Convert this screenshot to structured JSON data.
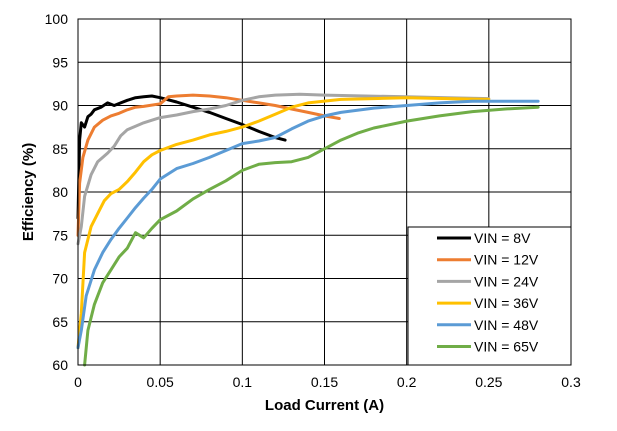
{
  "chart_data": {
    "type": "line",
    "xlabel": "Load Current (A)",
    "ylabel": "Efficiency (%)",
    "xlim": [
      0,
      0.3
    ],
    "ylim": [
      60,
      100
    ],
    "x_ticks": [
      "0",
      "0.05",
      "0.1",
      "0.15",
      "0.2",
      "0.25",
      "0.3"
    ],
    "y_ticks": [
      "60",
      "65",
      "70",
      "75",
      "80",
      "85",
      "90",
      "95",
      "100"
    ],
    "grid": true,
    "legend_position": "bottom-right",
    "series": [
      {
        "name": "VIN = 8V",
        "color": "#000000",
        "points": [
          [
            0,
            77
          ],
          [
            0.001,
            86
          ],
          [
            0.002,
            88
          ],
          [
            0.004,
            87.5
          ],
          [
            0.006,
            88.7
          ],
          [
            0.008,
            89
          ],
          [
            0.01,
            89.5
          ],
          [
            0.014,
            89.8
          ],
          [
            0.018,
            90.3
          ],
          [
            0.022,
            90
          ],
          [
            0.026,
            90.3
          ],
          [
            0.03,
            90.6
          ],
          [
            0.035,
            90.9
          ],
          [
            0.04,
            91
          ],
          [
            0.045,
            91.1
          ],
          [
            0.05,
            90.9
          ],
          [
            0.06,
            90.4
          ],
          [
            0.07,
            89.8
          ],
          [
            0.08,
            89.2
          ],
          [
            0.09,
            88.5
          ],
          [
            0.1,
            87.8
          ],
          [
            0.11,
            87
          ],
          [
            0.12,
            86.3
          ],
          [
            0.126,
            86
          ]
        ]
      },
      {
        "name": "VIN = 12V",
        "color": "#ed7d31",
        "points": [
          [
            0,
            75
          ],
          [
            0.001,
            81
          ],
          [
            0.003,
            84
          ],
          [
            0.006,
            86
          ],
          [
            0.01,
            87.5
          ],
          [
            0.015,
            88.3
          ],
          [
            0.02,
            88.8
          ],
          [
            0.025,
            89.1
          ],
          [
            0.03,
            89.5
          ],
          [
            0.035,
            89.8
          ],
          [
            0.04,
            89.9
          ],
          [
            0.05,
            90.2
          ],
          [
            0.055,
            91
          ],
          [
            0.06,
            91.1
          ],
          [
            0.07,
            91.2
          ],
          [
            0.08,
            91.1
          ],
          [
            0.09,
            90.9
          ],
          [
            0.1,
            90.6
          ],
          [
            0.11,
            90.3
          ],
          [
            0.12,
            90
          ],
          [
            0.13,
            89.6
          ],
          [
            0.14,
            89.2
          ],
          [
            0.15,
            88.8
          ],
          [
            0.159,
            88.5
          ]
        ]
      },
      {
        "name": "VIN = 24V",
        "color": "#a5a5a5",
        "points": [
          [
            0,
            74
          ],
          [
            0.002,
            76
          ],
          [
            0.004,
            79.5
          ],
          [
            0.008,
            82
          ],
          [
            0.012,
            83.5
          ],
          [
            0.018,
            84.5
          ],
          [
            0.022,
            85.3
          ],
          [
            0.026,
            86.5
          ],
          [
            0.03,
            87.2
          ],
          [
            0.035,
            87.6
          ],
          [
            0.04,
            88
          ],
          [
            0.045,
            88.3
          ],
          [
            0.05,
            88.6
          ],
          [
            0.06,
            88.9
          ],
          [
            0.07,
            89.3
          ],
          [
            0.08,
            89.6
          ],
          [
            0.09,
            90
          ],
          [
            0.1,
            90.6
          ],
          [
            0.11,
            91
          ],
          [
            0.12,
            91.2
          ],
          [
            0.135,
            91.3
          ],
          [
            0.15,
            91.2
          ],
          [
            0.175,
            91.1
          ],
          [
            0.2,
            91
          ],
          [
            0.225,
            90.9
          ],
          [
            0.25,
            90.8
          ]
        ]
      },
      {
        "name": "VIN = 36V",
        "color": "#ffc000",
        "points": [
          [
            0,
            62
          ],
          [
            0.002,
            66
          ],
          [
            0.004,
            73
          ],
          [
            0.008,
            76
          ],
          [
            0.012,
            77.5
          ],
          [
            0.016,
            79
          ],
          [
            0.02,
            79.8
          ],
          [
            0.025,
            80.3
          ],
          [
            0.03,
            81.2
          ],
          [
            0.035,
            82.3
          ],
          [
            0.04,
            83.5
          ],
          [
            0.045,
            84.3
          ],
          [
            0.05,
            84.8
          ],
          [
            0.06,
            85.5
          ],
          [
            0.07,
            86
          ],
          [
            0.08,
            86.6
          ],
          [
            0.09,
            87
          ],
          [
            0.1,
            87.5
          ],
          [
            0.11,
            88.2
          ],
          [
            0.12,
            89
          ],
          [
            0.13,
            89.8
          ],
          [
            0.14,
            90.3
          ],
          [
            0.16,
            90.7
          ],
          [
            0.18,
            90.8
          ],
          [
            0.2,
            90.9
          ],
          [
            0.225,
            90.8
          ],
          [
            0.25,
            90.7
          ]
        ]
      },
      {
        "name": "VIN = 48V",
        "color": "#5b9bd5",
        "points": [
          [
            0,
            62
          ],
          [
            0.002,
            64
          ],
          [
            0.005,
            68
          ],
          [
            0.01,
            71
          ],
          [
            0.015,
            73
          ],
          [
            0.02,
            74.5
          ],
          [
            0.025,
            75.8
          ],
          [
            0.03,
            77
          ],
          [
            0.035,
            78.2
          ],
          [
            0.04,
            79.3
          ],
          [
            0.045,
            80.3
          ],
          [
            0.05,
            81.5
          ],
          [
            0.06,
            82.7
          ],
          [
            0.07,
            83.3
          ],
          [
            0.08,
            84
          ],
          [
            0.09,
            84.8
          ],
          [
            0.1,
            85.6
          ],
          [
            0.11,
            85.9
          ],
          [
            0.12,
            86.3
          ],
          [
            0.13,
            87.3
          ],
          [
            0.14,
            88.2
          ],
          [
            0.15,
            88.8
          ],
          [
            0.16,
            89.2
          ],
          [
            0.18,
            89.7
          ],
          [
            0.2,
            90
          ],
          [
            0.22,
            90.3
          ],
          [
            0.24,
            90.5
          ],
          [
            0.26,
            90.5
          ],
          [
            0.28,
            90.5
          ]
        ]
      },
      {
        "name": "VIN = 65V",
        "color": "#70ad47",
        "points": [
          [
            0.004,
            60
          ],
          [
            0.006,
            64
          ],
          [
            0.01,
            67
          ],
          [
            0.015,
            69.5
          ],
          [
            0.02,
            71
          ],
          [
            0.025,
            72.5
          ],
          [
            0.03,
            73.5
          ],
          [
            0.035,
            75.3
          ],
          [
            0.04,
            74.7
          ],
          [
            0.045,
            75.8
          ],
          [
            0.05,
            76.8
          ],
          [
            0.06,
            77.8
          ],
          [
            0.07,
            79.2
          ],
          [
            0.08,
            80.3
          ],
          [
            0.09,
            81.3
          ],
          [
            0.1,
            82.5
          ],
          [
            0.11,
            83.2
          ],
          [
            0.12,
            83.4
          ],
          [
            0.13,
            83.5
          ],
          [
            0.14,
            84
          ],
          [
            0.15,
            85
          ],
          [
            0.16,
            86
          ],
          [
            0.17,
            86.8
          ],
          [
            0.18,
            87.4
          ],
          [
            0.2,
            88.2
          ],
          [
            0.22,
            88.8
          ],
          [
            0.24,
            89.3
          ],
          [
            0.26,
            89.6
          ],
          [
            0.28,
            89.8
          ]
        ]
      }
    ]
  }
}
